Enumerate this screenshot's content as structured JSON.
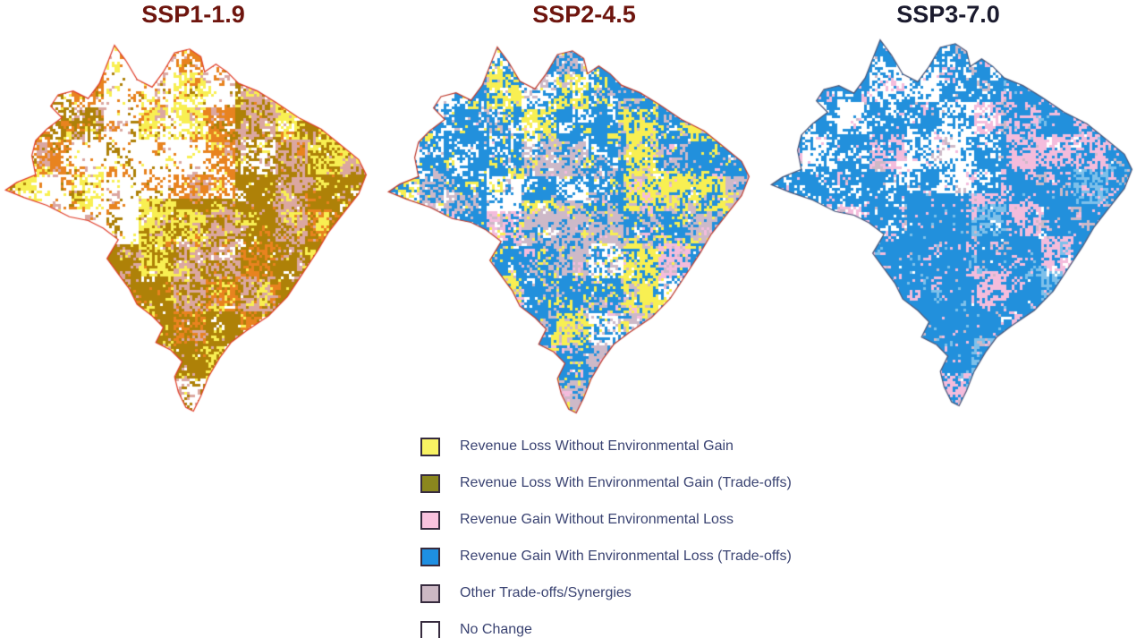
{
  "panels": [
    {
      "title": "SSP1-1.9",
      "title_color": "#6E150E",
      "outline_color": "#DF3B26",
      "seed": 1,
      "zones": {
        "amazon": [
          [
            "white",
            0.5
          ],
          [
            "orange",
            0.2
          ],
          [
            "yellow",
            0.1
          ],
          [
            "gold",
            0.12
          ],
          [
            "rose",
            0.08
          ]
        ],
        "rest": [
          [
            "white",
            0.06
          ],
          [
            "yellow",
            0.15
          ],
          [
            "gold",
            0.57
          ],
          [
            "rose",
            0.16
          ],
          [
            "orange",
            0.06
          ]
        ]
      }
    },
    {
      "title": "SSP2-4.5",
      "title_color": "#6E150E",
      "outline_color": "#BE3A2D",
      "seed": 2,
      "zones": {
        "amazon": [
          [
            "white",
            0.3
          ],
          [
            "blue",
            0.44
          ],
          [
            "yellow",
            0.12
          ],
          [
            "mauve",
            0.12
          ],
          [
            "pink",
            0.02
          ]
        ],
        "rest": [
          [
            "mauve",
            0.2
          ],
          [
            "blue",
            0.46
          ],
          [
            "yellow",
            0.24
          ],
          [
            "pink",
            0.05
          ],
          [
            "white",
            0.05
          ]
        ]
      }
    },
    {
      "title": "SSP3-7.0",
      "title_color": "#1B1B2E",
      "outline_color": "#4A5578",
      "seed": 3,
      "zones": {
        "amazon": [
          [
            "white",
            0.33
          ],
          [
            "blue",
            0.55
          ],
          [
            "pink",
            0.09
          ],
          [
            "mauve",
            0.03
          ]
        ],
        "rest": [
          [
            "lightblue",
            0.05
          ],
          [
            "blue",
            0.71
          ],
          [
            "pink",
            0.17
          ],
          [
            "mauve",
            0.05
          ],
          [
            "white",
            0.02
          ]
        ]
      }
    }
  ],
  "palette": {
    "white": "#FFFFFF",
    "yellow": "#F8EF52",
    "gold": "#AE8108",
    "orange": "#E8831F",
    "rose": "#DBA7A0",
    "pink": "#F4BCDC",
    "blue": "#2290DC",
    "lightblue": "#7EC0EA",
    "mauve": "#CDB9C8"
  },
  "legend": {
    "text_color": "#3A4372",
    "swatch_border": "#362B3E",
    "items": [
      {
        "label": "Revenue Loss Without Environmental Gain",
        "color": "#F8F263"
      },
      {
        "label": "Revenue Loss With Environmental Gain (Trade-offs)",
        "color": "#8B871E"
      },
      {
        "label": "Revenue Gain Without Environmental Loss",
        "color": "#F9C2DE"
      },
      {
        "label": "Revenue Gain With Environmental Loss (Trade-offs)",
        "color": "#1E8FE2"
      },
      {
        "label": "Other Trade-offs/Synergies",
        "color": "#CCB8C4"
      },
      {
        "label": "No Change",
        "color": "#FFFFFF"
      }
    ]
  },
  "chart_data": {
    "type": "map",
    "subtype": "categorical-choropleth, three-panel scenario comparison",
    "region": "Brazil",
    "legend_categories": [
      "Revenue Loss Without Environmental Gain",
      "Revenue Loss With Environmental Gain (Trade-offs)",
      "Revenue Gain Without Environmental Loss",
      "Revenue Gain With Environmental Loss (Trade-offs)",
      "Other Trade-offs/Synergies",
      "No Change"
    ],
    "panels": [
      {
        "scenario": "SSP1-1.9",
        "dominant_category": "Revenue Loss With Environmental Gain (Trade-offs)",
        "pattern": "Olive/dark-gold revenue loss with environmental gain dominates the center, east and south; northwest Amazon is mostly No Change (white) with orange/yellow loss speckles; pink and yellow speckles throughout",
        "approx_area_share": {
          "Revenue Loss With Environmental Gain (Trade-offs)": 0.45,
          "No Change": 0.25,
          "Revenue Loss Without Environmental Gain": 0.13,
          "Other Trade-offs/Synergies": 0.12,
          "Revenue Gain Without Environmental Loss": 0.05
        }
      },
      {
        "scenario": "SSP2-4.5",
        "dominant_category": "Revenue Gain With Environmental Loss (Trade-offs)",
        "pattern": "Blue revenue gain with environmental loss dominates, interleaved with large yellow revenue-loss patches and mauve other trade-offs; white No Change patches concentrated in the Amazon",
        "approx_area_share": {
          "Revenue Gain With Environmental Loss (Trade-offs)": 0.42,
          "Revenue Loss Without Environmental Gain": 0.2,
          "Other Trade-offs/Synergies": 0.17,
          "No Change": 0.13,
          "Revenue Gain Without Environmental Loss": 0.08
        }
      },
      {
        "scenario": "SSP3-7.0",
        "dominant_category": "Revenue Gain With Environmental Loss (Trade-offs)",
        "pattern": "Nearly the whole country is blue revenue gain with environmental loss, with pink revenue-gain patches; white No Change clusters in the northern Amazon",
        "approx_area_share": {
          "Revenue Gain With Environmental Loss (Trade-offs)": 0.62,
          "No Change": 0.17,
          "Revenue Gain Without Environmental Loss": 0.14,
          "Other Trade-offs/Synergies": 0.07
        }
      }
    ]
  }
}
